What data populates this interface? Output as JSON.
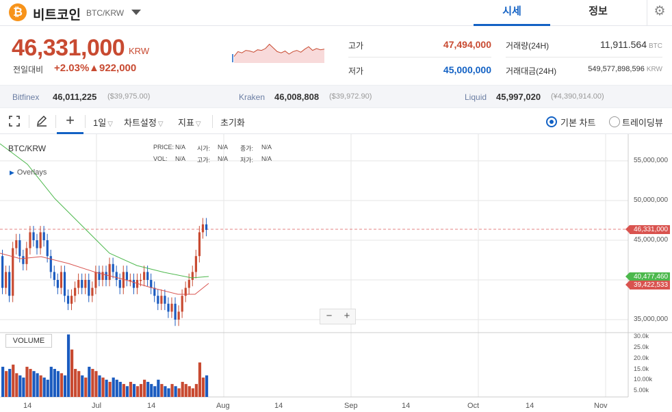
{
  "header": {
    "coin_symbol": "₿",
    "coin_name": "비트코인",
    "pair": "BTC/KRW",
    "tabs": [
      {
        "label": "시세"
      },
      {
        "label": "정보"
      }
    ]
  },
  "ticker": {
    "price": "46,331,000",
    "unit": "KRW",
    "change_label": "전일대비",
    "change_pct": "+2.03%",
    "change_arrow": "▲",
    "change_amount": "922,000",
    "high_label": "고가",
    "high": "47,494,000",
    "low_label": "저가",
    "low": "45,000,000",
    "volume_label": "거래량(24H)",
    "volume": "11,911.564",
    "volume_unit": "BTC",
    "value_label": "거래대금(24H)",
    "value": "549,577,898,596",
    "value_unit": "KRW",
    "sparkline": [
      45.2,
      46.0,
      45.8,
      46.2,
      46.1,
      45.9,
      46.3,
      46.2,
      46.5,
      47.2,
      46.6,
      46.0,
      45.8,
      46.1,
      45.6,
      46.0,
      46.2,
      45.9,
      46.4,
      46.8,
      46.2,
      46.5,
      46.3,
      46.4
    ]
  },
  "exchanges": [
    {
      "name": "Bitfinex",
      "price": "46,011,225",
      "usd": "($39,975.00)"
    },
    {
      "name": "Kraken",
      "price": "46,008,808",
      "usd": "($39,972.90)"
    },
    {
      "name": "Liquid",
      "price": "45,997,020",
      "usd": "(¥4,390,914.00)"
    }
  ],
  "toolbar": {
    "interval": "1일",
    "chart_settings": "차트설정",
    "indicators": "지표",
    "reset": "초기화",
    "basic_chart": "기본 차트",
    "trading_view": "트레이딩뷰"
  },
  "chart": {
    "title": "BTC/KRW",
    "overlays_label": "Overlays",
    "ohlc": [
      {
        "label": "PRICE:",
        "value": "N/A"
      },
      {
        "label": "시가:",
        "value": "N/A"
      },
      {
        "label": "종가:",
        "value": "N/A"
      },
      {
        "label": "VOL:",
        "value": "N/A"
      },
      {
        "label": "고가:",
        "value": "N/A"
      },
      {
        "label": "저가:",
        "value": "N/A"
      }
    ],
    "volume_label": "VOLUME",
    "y_ticks": [
      "55,000,000",
      "50,000,000",
      "45,000,000",
      "35,000,000"
    ],
    "volume_ticks": [
      "30.0k",
      "25.0k",
      "20.0k",
      "15.0k",
      "10.00k",
      "5.00k"
    ],
    "x_ticks": [
      "14",
      "Jul",
      "14",
      "Aug",
      "14",
      "Sep",
      "14",
      "Oct",
      "14",
      "Nov"
    ],
    "current_price_tag": "46,331,000",
    "ma_long_tag": "40,477,460",
    "ma_short_tag": "39,422,533",
    "zoom_out": "−",
    "zoom_in": "+"
  },
  "colors": {
    "up": "#c84a31",
    "down": "#1b5bbf",
    "ma_long": "#4cb84c",
    "ma_short": "#d9534f",
    "accent": "#1261c4"
  }
}
